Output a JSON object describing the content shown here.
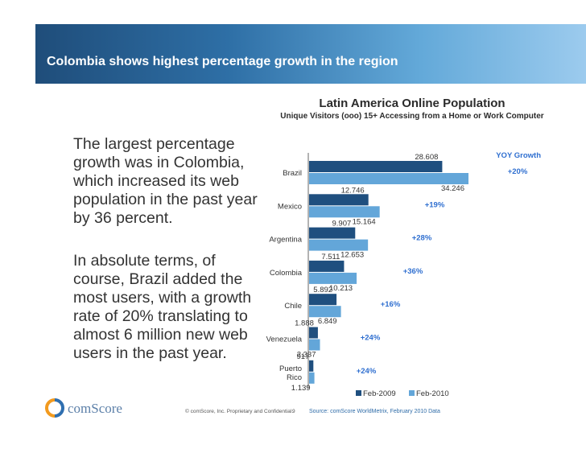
{
  "slide": {
    "title": "Colombia shows highest percentage growth in the region",
    "paragraph1": "The largest percentage growth was in Colombia, which increased its web population in the past year by 36 percent.",
    "paragraph2": "In absolute terms, of course, Brazil added the most users, with a growth rate of 20% translating to almost 6 million new web users in the past year."
  },
  "footer": {
    "logo_text": "comScore",
    "copyright": "© comScore, Inc.  Proprietary and Confidential.",
    "page_number": "9",
    "source": "Source:  comScore WorldMetrix, February 2010 Data"
  },
  "colors": {
    "series_2009": "#1f4f7f",
    "series_2010": "#63a6d9",
    "growth_text": "#2f6fd0"
  },
  "chart_data": {
    "type": "bar",
    "orientation": "horizontal",
    "title": "Latin America Online Population",
    "subtitle": "Unique Visitors (ooo) 15+ Accessing from a Home or Work Computer",
    "growth_header": "YOY Growth",
    "categories": [
      "Brazil",
      "Mexico",
      "Argentina",
      "Colombia",
      "Chile",
      "Venezuela",
      "Puerto Rico"
    ],
    "series": [
      {
        "name": "Feb-2009",
        "values": [
          28608,
          12746,
          9907,
          7511,
          5892,
          1888,
          917
        ],
        "labels": [
          "28.608",
          "12.746",
          "9.907",
          "7.511",
          "5.892",
          "1.888",
          "917"
        ]
      },
      {
        "name": "Feb-2010",
        "values": [
          34246,
          15164,
          12653,
          10213,
          6849,
          2337,
          1139
        ],
        "labels": [
          "34.246",
          "15.164",
          "12.653",
          "10.213",
          "6.849",
          "2.337",
          "1.139"
        ]
      }
    ],
    "growth": [
      "+20%",
      "+19%",
      "+28%",
      "+36%",
      "+16%",
      "+24%",
      "+24%"
    ],
    "xlim": [
      0,
      34246
    ],
    "legend_position": "bottom"
  }
}
